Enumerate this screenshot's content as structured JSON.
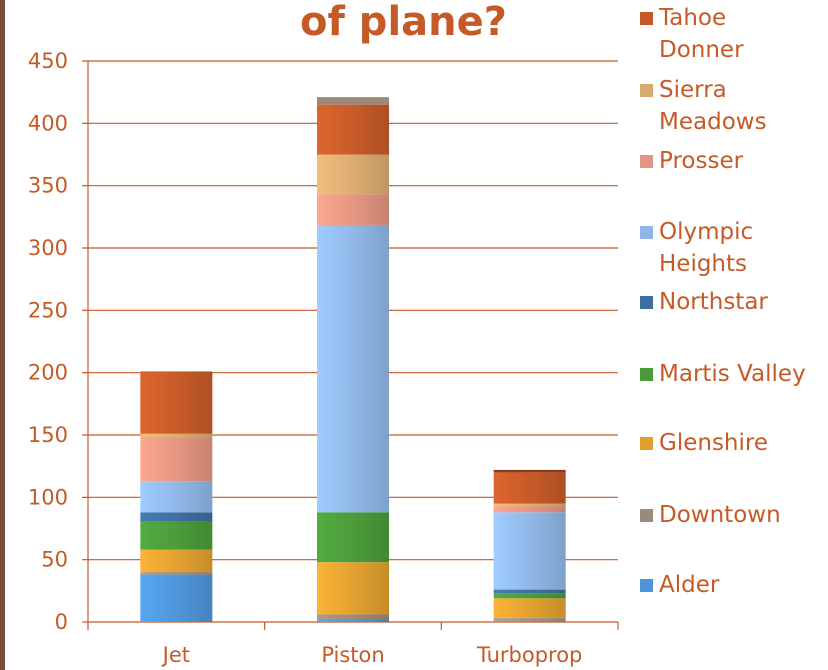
{
  "chart_data": {
    "type": "bar",
    "stacked": true,
    "title": "of plane?",
    "categories": [
      "Jet",
      "Piston",
      "Turboprop"
    ],
    "ylim": [
      0,
      450
    ],
    "yticks": [
      0,
      50,
      100,
      150,
      200,
      250,
      300,
      350,
      400,
      450
    ],
    "grid": true,
    "legend_placement": "right",
    "series": [
      {
        "name": "Alder",
        "color": "#4f94d8",
        "values": [
          38,
          2,
          1
        ]
      },
      {
        "name": "Downtown",
        "color": "#9b8a7a",
        "values": [
          2,
          4,
          2
        ]
      },
      {
        "name": "Glenshire",
        "color": "#e0a030",
        "values": [
          18,
          42,
          16
        ]
      },
      {
        "name": "Martis Valley",
        "color": "#4a9a3a",
        "values": [
          23,
          40,
          4
        ]
      },
      {
        "name": "Northstar",
        "color": "#3e6e9e",
        "values": [
          7,
          0,
          3
        ]
      },
      {
        "name": "Olympic Heights",
        "color": "#8fb6e6",
        "values": [
          25,
          230,
          62
        ]
      },
      {
        "name": "Prosser",
        "color": "#e29580",
        "values": [
          35,
          25,
          5
        ]
      },
      {
        "name": "Sierra Meadows",
        "color": "#d9aa70",
        "values": [
          3,
          32,
          2
        ]
      },
      {
        "name": "Tahoe Donner",
        "color": "#c55a28",
        "values": [
          50,
          40,
          25
        ]
      }
    ],
    "extra_top": [
      {
        "category": "Piston",
        "color": "#9b8a7a",
        "value": 6
      },
      {
        "category": "Turboprop",
        "color": "#8a3a18",
        "value": 2
      }
    ],
    "legend": [
      {
        "label": "Tahoe Donner",
        "color": "#c55a28"
      },
      {
        "label": "Sierra Meadows",
        "color": "#d9aa70"
      },
      {
        "label": "Prosser",
        "color": "#e29580"
      },
      {
        "label": "Olympic Heights",
        "color": "#8fb6e6"
      },
      {
        "label": "Northstar",
        "color": "#3e6e9e"
      },
      {
        "label": "Martis Valley",
        "color": "#4a9a3a"
      },
      {
        "label": "Glenshire",
        "color": "#e0a030"
      },
      {
        "label": "Downtown",
        "color": "#9b8a7a"
      },
      {
        "label": "Alder",
        "color": "#4f94d8"
      }
    ],
    "legend_lines": [
      [
        "Tahoe",
        "Donner"
      ],
      [
        "Sierra",
        "Meadows"
      ],
      [
        "Prosser"
      ],
      [
        "Olympic",
        "Heights"
      ],
      [
        "Northstar"
      ],
      [
        "Martis Valley"
      ],
      [
        "Glenshire"
      ],
      [
        "Downtown"
      ],
      [
        "Alder"
      ]
    ]
  }
}
